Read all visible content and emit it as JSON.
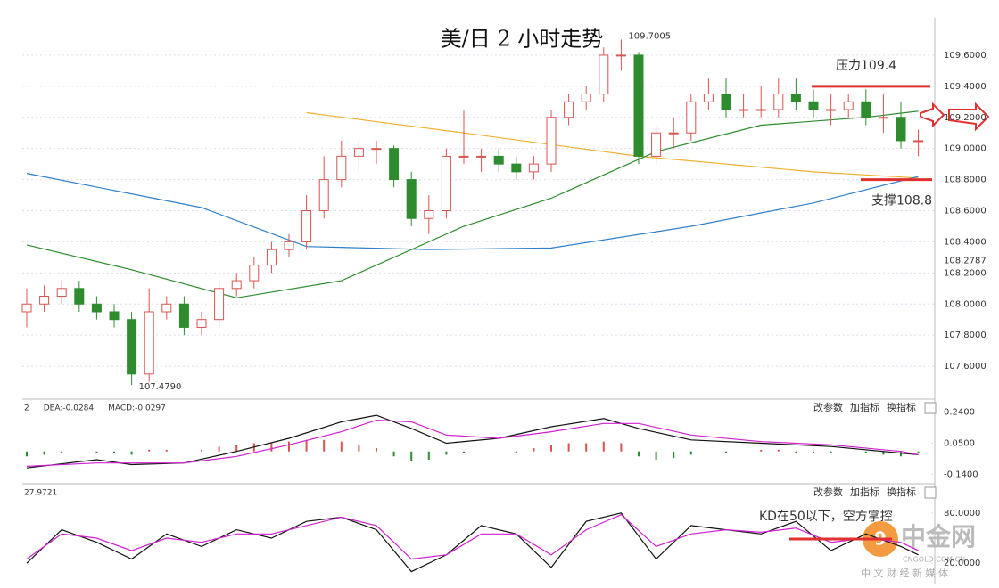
{
  "chart_data": [
    {
      "type": "candlestick",
      "title": "美/日 2 小时走势",
      "up_color": "#d9534f",
      "down_color": "#2e8b2e",
      "open": [
        107.95,
        108.0,
        108.05,
        108.1,
        108.0,
        107.95,
        107.9,
        107.55,
        107.95,
        108.0,
        107.85,
        107.9,
        108.1,
        108.15,
        108.25,
        108.35,
        108.4,
        108.6,
        108.8,
        108.95,
        109.0,
        109.0,
        108.8,
        108.55,
        108.6,
        108.95,
        108.95,
        108.95,
        108.9,
        108.85,
        108.9,
        109.2,
        109.3,
        109.35,
        109.6,
        109.6,
        108.95,
        109.1,
        109.1,
        109.3,
        109.35,
        109.25,
        109.25,
        109.25,
        109.35,
        109.3,
        109.25,
        109.25,
        109.3,
        109.2,
        109.2,
        109.05
      ],
      "high": [
        108.1,
        108.12,
        108.15,
        108.15,
        108.05,
        108.0,
        107.95,
        108.1,
        108.05,
        108.05,
        107.95,
        108.15,
        108.2,
        108.3,
        108.4,
        108.45,
        108.7,
        108.95,
        109.05,
        109.05,
        109.05,
        109.02,
        108.85,
        108.7,
        109.0,
        109.25,
        109.0,
        109.0,
        108.95,
        108.95,
        109.25,
        109.35,
        109.4,
        109.65,
        109.7005,
        109.62,
        109.15,
        109.2,
        109.35,
        109.45,
        109.45,
        109.35,
        109.4,
        109.45,
        109.45,
        109.38,
        109.35,
        109.35,
        109.38,
        109.35,
        109.3,
        109.12
      ],
      "low": [
        107.85,
        107.95,
        108.0,
        107.95,
        107.9,
        107.85,
        107.479,
        107.5,
        107.9,
        107.8,
        107.8,
        107.85,
        108.05,
        108.1,
        108.2,
        108.3,
        108.35,
        108.55,
        108.75,
        108.85,
        108.9,
        108.75,
        108.5,
        108.45,
        108.55,
        108.9,
        108.85,
        108.85,
        108.8,
        108.8,
        108.85,
        109.15,
        109.25,
        109.3,
        109.5,
        108.9,
        108.9,
        109.0,
        109.05,
        109.25,
        109.2,
        109.2,
        109.2,
        109.2,
        109.25,
        109.2,
        109.15,
        109.2,
        109.15,
        109.1,
        109.0,
        108.95
      ],
      "close": [
        108.0,
        108.05,
        108.1,
        108.0,
        107.95,
        107.9,
        107.55,
        107.95,
        108.0,
        107.85,
        107.9,
        108.1,
        108.15,
        108.25,
        108.35,
        108.4,
        108.6,
        108.8,
        108.95,
        109.0,
        109.0,
        108.8,
        108.55,
        108.6,
        108.95,
        108.95,
        108.95,
        108.9,
        108.85,
        108.9,
        109.2,
        109.3,
        109.35,
        109.6,
        109.6,
        108.95,
        109.1,
        109.1,
        109.3,
        109.35,
        109.25,
        109.25,
        109.25,
        109.35,
        109.3,
        109.25,
        109.25,
        109.3,
        109.2,
        109.2,
        109.05,
        109.05
      ],
      "lines": [
        {
          "color": "#f0b030",
          "x": [
            16,
            25,
            35,
            45,
            51
          ],
          "values": [
            109.23,
            109.1,
            108.95,
            108.85,
            108.81
          ]
        },
        {
          "color": "#2f7fc8",
          "x": [
            0,
            10,
            16,
            23,
            30,
            38,
            45,
            51
          ],
          "values": [
            108.84,
            108.62,
            108.37,
            108.35,
            108.36,
            108.5,
            108.65,
            108.82
          ]
        },
        {
          "color": "#2e8b2e",
          "x": [
            0,
            6,
            12,
            18,
            25,
            30,
            36,
            42,
            48,
            51
          ],
          "values": [
            108.38,
            108.22,
            108.04,
            108.15,
            108.5,
            108.68,
            108.98,
            109.15,
            109.2,
            109.24
          ]
        }
      ],
      "ylim": [
        107.4,
        109.8
      ],
      "yticks": [
        {
          "value": 109.6,
          "label": "109.6000"
        },
        {
          "value": 109.4,
          "label": "109.4000"
        },
        {
          "value": 109.2,
          "label": "109.2000"
        },
        {
          "value": 109.0,
          "label": "109.0000"
        },
        {
          "value": 108.8,
          "label": "108.8000"
        },
        {
          "value": 108.6,
          "label": "108.6000"
        },
        {
          "value": 108.4,
          "label": "108.4000"
        },
        {
          "value": 108.2,
          "label": "108.2000"
        },
        {
          "value": 108.0,
          "label": "108.0000"
        },
        {
          "value": 107.8,
          "label": "107.8000"
        },
        {
          "value": 107.6,
          "label": "107.6000"
        }
      ],
      "current_price": {
        "value": 108.2787,
        "label": "108.2787"
      },
      "high_mark": {
        "value": 109.7005,
        "label": "109.7005"
      },
      "low_mark": {
        "value": 107.479,
        "label": "107.4790"
      },
      "resistance": {
        "value": 109.4,
        "label": "压力109.4"
      },
      "support": {
        "value": 108.8,
        "label": "支撑108.8"
      },
      "grid": true
    },
    {
      "type": "macd",
      "header": [
        "2",
        "DEA:-0.0284",
        "MACD:-0.0297"
      ],
      "buttons": [
        "改参数",
        "加指标",
        "换指标"
      ],
      "histogram": [
        -0.03,
        -0.02,
        -0.01,
        0.0,
        -0.01,
        -0.01,
        -0.02,
        0.01,
        0.01,
        0.0,
        0.01,
        0.03,
        0.04,
        0.05,
        0.05,
        0.06,
        0.07,
        0.07,
        0.06,
        0.04,
        0.02,
        -0.03,
        -0.06,
        -0.05,
        -0.02,
        -0.01,
        0.0,
        0.0,
        -0.01,
        0.02,
        0.04,
        0.05,
        0.05,
        0.06,
        0.05,
        -0.03,
        -0.05,
        -0.04,
        -0.02,
        0.0,
        -0.01,
        0.0,
        0.01,
        0.01,
        -0.01,
        -0.01,
        -0.01,
        0.0,
        -0.01,
        -0.02,
        -0.03,
        -0.01
      ],
      "lines": [
        {
          "color": "#111",
          "x": [
            0,
            4,
            6,
            9,
            12,
            15,
            18,
            20,
            22,
            24,
            27,
            30,
            33,
            35,
            38,
            42,
            46,
            50,
            51
          ],
          "values": [
            -0.1,
            -0.05,
            -0.08,
            -0.07,
            0.0,
            0.08,
            0.18,
            0.22,
            0.14,
            0.05,
            0.08,
            0.15,
            0.2,
            0.14,
            0.07,
            0.05,
            0.03,
            -0.01,
            -0.02
          ]
        },
        {
          "color": "#d020d0",
          "x": [
            0,
            4,
            6,
            9,
            12,
            15,
            18,
            20,
            22,
            24,
            27,
            30,
            33,
            35,
            38,
            42,
            46,
            50,
            51
          ],
          "values": [
            -0.09,
            -0.07,
            -0.07,
            -0.07,
            -0.03,
            0.04,
            0.12,
            0.19,
            0.18,
            0.1,
            0.08,
            0.12,
            0.17,
            0.17,
            0.1,
            0.06,
            0.04,
            0.0,
            -0.02
          ]
        }
      ],
      "ylim": [
        -0.18,
        0.28
      ],
      "yticks": [
        {
          "value": 0.24,
          "label": "0.2400"
        },
        {
          "value": 0.05,
          "label": "0.0500"
        },
        {
          "value": -0.14,
          "label": "-0.1400"
        }
      ]
    },
    {
      "type": "kd",
      "header": [
        "27.9721"
      ],
      "buttons": [
        "改参数",
        "加指标",
        "换指标"
      ],
      "annotation": "KD在50以下，空方掌控",
      "lines": [
        {
          "color": "#111",
          "x": [
            0,
            2,
            4,
            6,
            8,
            10,
            12,
            14,
            16,
            18,
            20,
            22,
            24,
            26,
            28,
            30,
            32,
            34,
            36,
            38,
            40,
            42,
            44,
            46,
            48,
            50,
            51
          ],
          "values": [
            20,
            60,
            45,
            25,
            55,
            40,
            60,
            50,
            70,
            75,
            60,
            10,
            30,
            65,
            55,
            15,
            70,
            80,
            25,
            65,
            60,
            55,
            70,
            35,
            55,
            40,
            30
          ]
        },
        {
          "color": "#d020d0",
          "x": [
            0,
            2,
            4,
            6,
            8,
            10,
            12,
            14,
            16,
            18,
            20,
            22,
            24,
            26,
            28,
            30,
            32,
            34,
            36,
            38,
            40,
            42,
            44,
            46,
            48,
            50,
            51
          ],
          "values": [
            25,
            55,
            50,
            35,
            50,
            45,
            55,
            55,
            65,
            75,
            65,
            25,
            30,
            55,
            55,
            30,
            60,
            78,
            40,
            55,
            60,
            57,
            62,
            45,
            50,
            45,
            35
          ]
        }
      ],
      "ylim": [
        0,
        100
      ],
      "yticks": [
        {
          "value": 80,
          "label": "80.0000"
        },
        {
          "value": 20,
          "label": "20.0000"
        }
      ]
    }
  ],
  "watermark": {
    "name": "中金网",
    "site": "CNGOLD.COM.CN",
    "slogan": "中 文 财 经 新 媒 体"
  }
}
